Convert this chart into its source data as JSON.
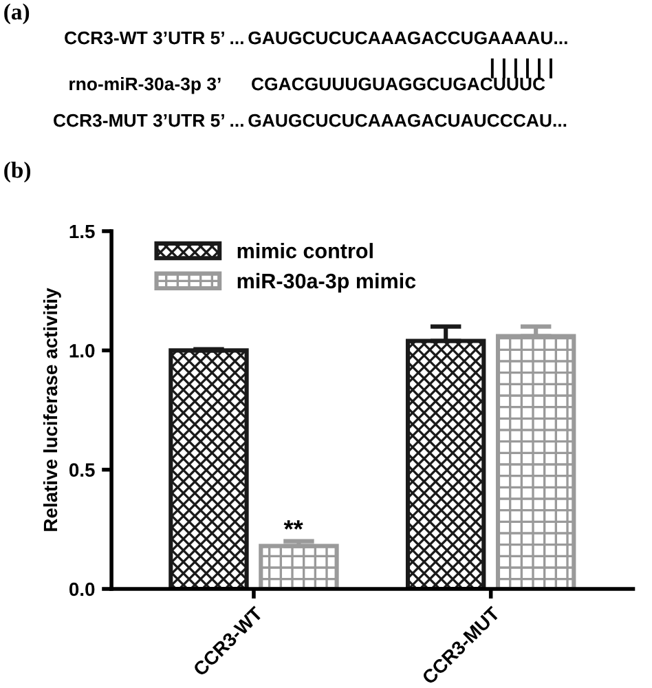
{
  "chart_data": {
    "type": "bar",
    "categories": [
      "CCR3-WT",
      "CCR3-MUT"
    ],
    "ylabel": "Relative luciferase activitiy",
    "series": [
      {
        "name": "mimic control",
        "color": "#1a1a1a",
        "values": [
          1.0,
          1.04
        ],
        "errors": [
          0.005,
          0.06
        ]
      },
      {
        "name": "miR-30a-3p mimic",
        "color": "#9a9a9a",
        "values": [
          0.18,
          1.06
        ],
        "errors": [
          0.02,
          0.04
        ]
      }
    ],
    "ylim": [
      0,
      1.5
    ],
    "yticks": [
      {
        "value": 0,
        "label": "0.0"
      },
      0.5,
      {
        "value": 1,
        "label": "1.0"
      },
      1.5
    ],
    "legend": "top left",
    "grid": false,
    "annotations": [
      "(a)",
      "CCR3-WT 3’UTR 5’ ...",
      "GAUGCUCUCAAAGACCUGAAAAU...",
      "| | | | | |",
      "rno-miR-30a-3p 3’",
      "CGACGUUUGUAGGCUGACUUUC",
      "CCR3-MUT 3’UTR 5’ ...",
      "GAUGCUCUCAAAGACUAUCCCAU...",
      "(b)",
      "**"
    ]
  }
}
